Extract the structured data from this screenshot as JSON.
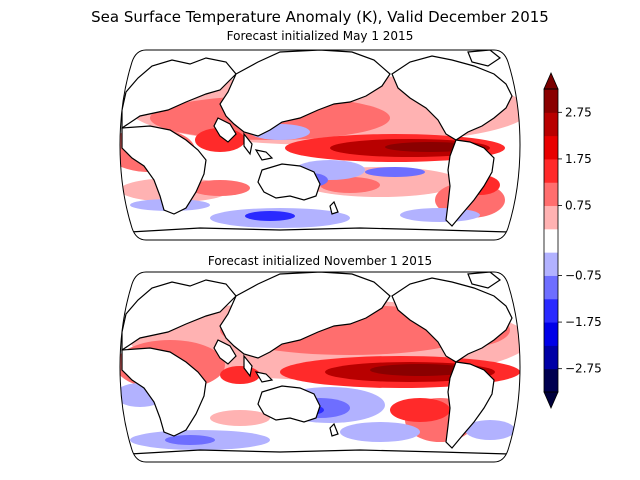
{
  "figure": {
    "title": "Sea Surface Temperature Anomaly (K), Valid December 2015",
    "panels": [
      {
        "subtitle": "Forecast initialized May 1 2015"
      },
      {
        "subtitle": "Forecast initialized November 1 2015"
      }
    ]
  },
  "colorbar": {
    "tick_labels": [
      "2.75",
      "1.75",
      "0.75",
      "−0.75",
      "−1.75",
      "−2.75"
    ],
    "levels": [
      -3.25,
      -2.75,
      -2.25,
      -1.75,
      -1.25,
      -0.75,
      -0.25,
      0.25,
      0.75,
      1.25,
      1.75,
      2.25,
      2.75,
      3.25
    ],
    "colors": [
      "#000050",
      "#0000a6",
      "#0000e8",
      "#2a2aff",
      "#6e6eff",
      "#b2b2ff",
      "#ffffff",
      "#ffb2b2",
      "#ff6e6e",
      "#ff2a2a",
      "#e80000",
      "#b80000",
      "#8a0000"
    ],
    "extend": "both"
  },
  "map": {
    "projection": "Robinson",
    "land_color": "#ffffff",
    "coastline_color": "#000000"
  }
}
